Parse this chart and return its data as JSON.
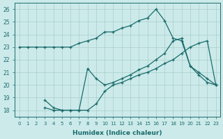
{
  "xlabel": "Humidex (Indice chaleur)",
  "bg_color": "#cceaea",
  "grid_color": "#aacccc",
  "line_color": "#1a6b6b",
  "xlim": [
    -0.5,
    23.5
  ],
  "ylim": [
    17.5,
    26.5
  ],
  "xticks": [
    0,
    1,
    2,
    3,
    4,
    5,
    6,
    7,
    8,
    9,
    10,
    11,
    12,
    13,
    14,
    15,
    16,
    17,
    18,
    19,
    20,
    21,
    22,
    23
  ],
  "yticks": [
    18,
    19,
    20,
    21,
    22,
    23,
    24,
    25,
    26
  ],
  "line1_x": [
    0,
    1,
    2,
    3,
    4,
    5,
    6,
    7,
    8,
    9,
    10,
    11,
    12,
    13,
    14,
    15,
    16,
    17,
    18,
    19,
    20,
    21,
    22,
    23
  ],
  "line1_y": [
    23,
    23,
    23,
    23,
    23,
    23,
    23,
    23.3,
    23.5,
    23.7,
    24.2,
    24.2,
    24.5,
    24.7,
    25.1,
    25.3,
    26.0,
    25.1,
    23.7,
    23.5,
    21.5,
    20.8,
    20.2,
    20.0
  ],
  "line2_x": [
    3,
    4,
    5,
    6,
    7,
    8,
    9,
    10,
    11,
    12,
    13,
    14,
    15,
    16,
    17,
    18,
    19,
    20,
    21,
    22,
    23
  ],
  "line2_y": [
    18.2,
    18.0,
    18.0,
    18.0,
    18.0,
    18.0,
    18.5,
    19.5,
    20.0,
    20.2,
    20.5,
    20.8,
    21.0,
    21.3,
    21.7,
    22.0,
    22.5,
    23.0,
    23.3,
    23.5,
    20.0
  ],
  "line3_x": [
    3,
    4,
    5,
    6,
    7,
    8,
    9,
    10,
    11,
    12,
    13,
    14,
    15,
    16,
    17,
    18,
    19,
    20,
    21,
    22,
    23
  ],
  "line3_y": [
    18.8,
    18.2,
    18.0,
    18.0,
    18.0,
    21.3,
    20.5,
    20.0,
    20.2,
    20.5,
    20.8,
    21.2,
    21.5,
    22.0,
    22.5,
    23.5,
    23.7,
    21.5,
    21.0,
    20.5,
    20.0
  ]
}
